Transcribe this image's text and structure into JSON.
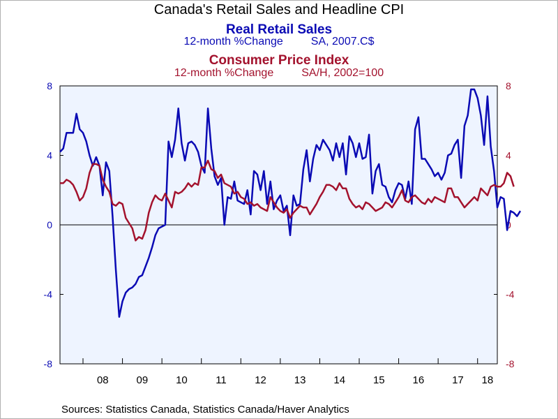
{
  "colors": {
    "series1": "#0a0ab4",
    "series2": "#a3122d",
    "plot_bg": "#eef4ff",
    "axis": "#000000"
  },
  "chart_data": {
    "type": "line",
    "title": "Canada's Retail Sales and Headline CPI",
    "x_tick_labels": [
      "08",
      "09",
      "10",
      "11",
      "12",
      "13",
      "14",
      "15",
      "16",
      "17",
      "18"
    ],
    "xlim": [
      "2007-06",
      "2018-07"
    ],
    "left_axis": {
      "ylim": [
        -8,
        8
      ],
      "ticks": [
        -8,
        -4,
        0,
        4,
        8
      ]
    },
    "right_axis": {
      "ylim": [
        -8,
        8
      ],
      "ticks": [
        -8,
        -4,
        0,
        4,
        8
      ]
    },
    "grid": false,
    "series": [
      {
        "name": "Real Retail Sales",
        "subtitle": "12-month %Change",
        "note": "SA, 2007.C$",
        "axis": "left",
        "start": "2007-06",
        "frequency": "monthly",
        "values": [
          4.2,
          4.4,
          5.3,
          5.3,
          5.3,
          6.4,
          5.5,
          5.3,
          4.8,
          4.0,
          3.4,
          3.9,
          3.4,
          1.7,
          3.6,
          3.1,
          0.5,
          -2.6,
          -5.3,
          -4.4,
          -3.9,
          -3.7,
          -3.6,
          -3.4,
          -3.0,
          -2.9,
          -2.4,
          -1.9,
          -1.3,
          -0.6,
          -0.2,
          -0.1,
          0.0,
          4.8,
          3.9,
          4.9,
          6.7,
          4.7,
          3.7,
          4.7,
          4.8,
          4.6,
          4.2,
          3.4,
          3.0,
          6.7,
          4.4,
          2.8,
          2.3,
          2.7,
          0.0,
          1.6,
          1.5,
          2.5,
          1.4,
          1.3,
          1.2,
          2.0,
          0.6,
          3.1,
          2.9,
          2.0,
          3.1,
          1.2,
          2.5,
          0.9,
          1.4,
          1.7,
          0.8,
          1.1,
          -0.6,
          1.7,
          1.1,
          1.2,
          3.2,
          4.3,
          2.5,
          3.8,
          4.6,
          4.3,
          4.9,
          4.6,
          4.3,
          3.7,
          4.7,
          3.9,
          4.7,
          2.9,
          5.1,
          4.7,
          3.9,
          4.7,
          3.8,
          3.9,
          5.2,
          1.8,
          3.1,
          3.5,
          2.3,
          2.2,
          1.6,
          1.3,
          2.0,
          2.4,
          2.3,
          1.5,
          2.5,
          1.2,
          5.5,
          6.2,
          3.8,
          3.8,
          3.5,
          3.2,
          2.8,
          3.0,
          2.6,
          3.0,
          4.0,
          4.1,
          4.6,
          4.9,
          2.7,
          5.7,
          6.3,
          7.8,
          7.8,
          7.3,
          6.3,
          4.6,
          7.4,
          4.5,
          3.1,
          1.0,
          1.6,
          1.5,
          -0.3,
          0.8,
          0.7,
          0.5,
          0.8
        ]
      },
      {
        "name": "Consumer Price Index",
        "subtitle": "12-month %Change",
        "note": "SA/H, 2002=100",
        "axis": "right",
        "start": "2007-06",
        "frequency": "monthly",
        "values": [
          2.4,
          2.4,
          2.6,
          2.5,
          2.3,
          1.9,
          1.4,
          1.6,
          2.1,
          3.0,
          3.5,
          3.5,
          3.4,
          2.6,
          2.2,
          1.9,
          1.2,
          1.1,
          1.3,
          1.2,
          0.4,
          0.1,
          -0.2,
          -0.9,
          -0.7,
          -0.8,
          -0.3,
          0.7,
          1.3,
          1.7,
          1.5,
          1.4,
          1.8,
          1.4,
          1.0,
          1.9,
          1.8,
          1.9,
          2.1,
          2.4,
          2.2,
          2.4,
          2.3,
          3.3,
          3.3,
          3.7,
          3.2,
          3.1,
          2.7,
          2.9,
          2.4,
          2.3,
          2.2,
          1.8,
          1.9,
          1.6,
          1.5,
          1.2,
          1.3,
          1.1,
          1.2,
          1.0,
          0.9,
          0.8,
          1.6,
          1.3,
          1.0,
          0.8,
          0.7,
          0.9,
          0.4,
          0.7,
          0.9,
          1.1,
          1.0,
          1.0,
          0.6,
          0.9,
          1.2,
          1.6,
          1.9,
          2.3,
          2.3,
          2.2,
          2.0,
          2.4,
          2.1,
          2.1,
          1.5,
          1.2,
          1.0,
          1.1,
          0.9,
          1.3,
          1.2,
          1.0,
          0.8,
          0.9,
          1.0,
          1.3,
          1.2,
          1.0,
          1.3,
          1.6,
          2.0,
          1.4,
          1.3,
          1.6,
          1.7,
          1.5,
          1.3,
          1.2,
          1.5,
          1.3,
          1.6,
          1.5,
          1.4,
          1.3,
          2.1,
          2.1,
          1.6,
          1.6,
          1.3,
          1.0,
          1.2,
          1.4,
          1.6,
          1.4,
          2.1,
          1.9,
          1.7,
          2.2,
          2.3,
          2.2,
          2.2,
          2.4,
          3.0,
          2.8,
          2.2
        ]
      }
    ]
  },
  "footer": {
    "sources": "Sources:  Statistics Canada, Statistics Canada/Haver Analytics"
  }
}
